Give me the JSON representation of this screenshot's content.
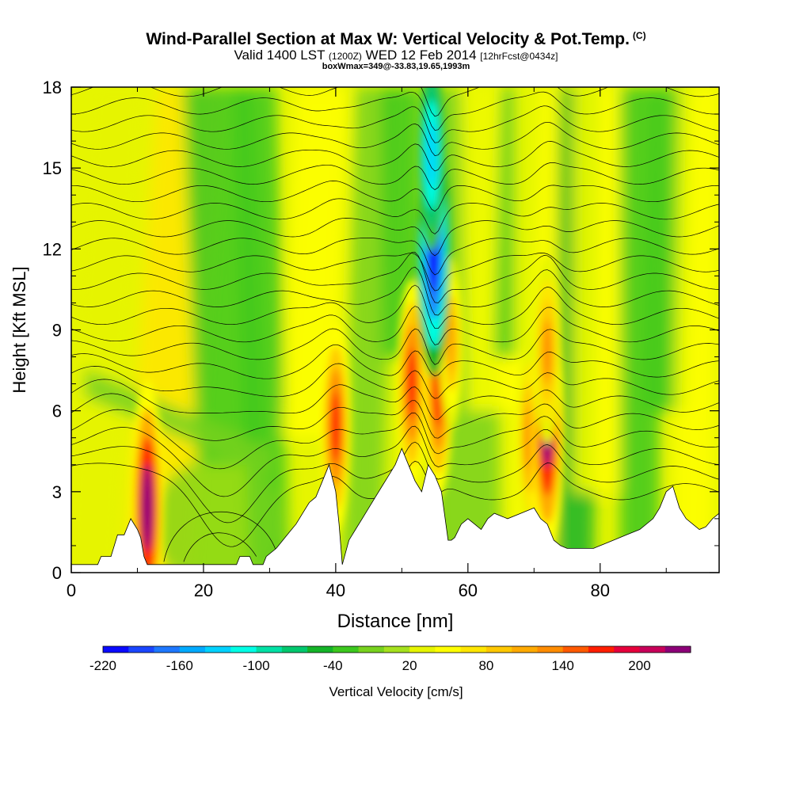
{
  "header": {
    "title": "Wind-Parallel Section at Max W: Vertical Velocity & Pot.Temp.",
    "copyright": "(C)",
    "subtitle_main": "Valid 1400 LST",
    "subtitle_utc": "(1200Z)",
    "subtitle_date": "WED 12 Feb 2014",
    "subtitle_fcst": "[12hrFcst@0434z]",
    "box_info": "boxWmax=349@-33.83,19.65,1993m"
  },
  "chart_data": {
    "type": "heatmap",
    "title": "Wind-Parallel Section at Max W: Vertical Velocity & Pot.Temp.",
    "xlabel": "Distance [nm]",
    "ylabel": "Height [Kft MSL]",
    "xlim": [
      0,
      98
    ],
    "ylim": [
      0,
      18
    ],
    "xticks": [
      0,
      20,
      40,
      60,
      80
    ],
    "yticks": [
      0,
      3,
      6,
      9,
      12,
      15,
      18
    ],
    "colorbar": {
      "label": "Vertical Velocity [cm/s]",
      "tick_labels": [
        "-220",
        "-160",
        "-100",
        "-40",
        "20",
        "80",
        "140",
        "200"
      ],
      "levels": [
        -220,
        -200,
        -180,
        -160,
        -140,
        -120,
        -100,
        -80,
        -60,
        -40,
        -20,
        0,
        20,
        40,
        60,
        80,
        100,
        120,
        140,
        160,
        180,
        200,
        220
      ],
      "colors": [
        "#0a0aff",
        "#1a46ff",
        "#1e78ff",
        "#00aaff",
        "#00d2ff",
        "#00ffe6",
        "#00e1a5",
        "#00c86e",
        "#14b428",
        "#3cc81e",
        "#78d21e",
        "#a5e11e",
        "#e6f500",
        "#ffff00",
        "#ffe600",
        "#ffc800",
        "#ffaa00",
        "#ff8c00",
        "#ff5a00",
        "#ff1e00",
        "#e6003c",
        "#c8005a",
        "#8c0078"
      ]
    },
    "terrain": [
      [
        0,
        0.3
      ],
      [
        4,
        0.3
      ],
      [
        4.5,
        0.6
      ],
      [
        6,
        0.6
      ],
      [
        6.5,
        1.0
      ],
      [
        7,
        1.4
      ],
      [
        8,
        1.4
      ],
      [
        9,
        2.0
      ],
      [
        10,
        1.6
      ],
      [
        10.5,
        1.3
      ],
      [
        11,
        0.6
      ],
      [
        11.5,
        0.3
      ],
      [
        25,
        0.3
      ],
      [
        25.5,
        0.6
      ],
      [
        27,
        0.6
      ],
      [
        27.5,
        0.3
      ],
      [
        29,
        0.3
      ],
      [
        29.5,
        0.6
      ],
      [
        31,
        0.9
      ],
      [
        32,
        1.2
      ],
      [
        33,
        1.5
      ],
      [
        34,
        1.8
      ],
      [
        35,
        2.2
      ],
      [
        36,
        2.6
      ],
      [
        37,
        2.8
      ],
      [
        38,
        3.4
      ],
      [
        39,
        4.0
      ],
      [
        40,
        3.0
      ],
      [
        40.5,
        1.8
      ],
      [
        41,
        0.3
      ],
      [
        42,
        1.2
      ],
      [
        43,
        1.6
      ],
      [
        44,
        2.0
      ],
      [
        45,
        2.4
      ],
      [
        46,
        2.8
      ],
      [
        47,
        3.2
      ],
      [
        48,
        3.6
      ],
      [
        49,
        4.0
      ],
      [
        50,
        4.6
      ],
      [
        51,
        4.0
      ],
      [
        52,
        3.4
      ],
      [
        53,
        3.0
      ],
      [
        54,
        4.0
      ],
      [
        55,
        3.6
      ],
      [
        56,
        3.0
      ],
      [
        57,
        1.2
      ],
      [
        57.5,
        1.2
      ],
      [
        58,
        1.3
      ],
      [
        59,
        1.8
      ],
      [
        60,
        2.0
      ],
      [
        61,
        1.8
      ],
      [
        62,
        1.6
      ],
      [
        63,
        2.0
      ],
      [
        64,
        2.2
      ],
      [
        66,
        2.0
      ],
      [
        68,
        2.2
      ],
      [
        70,
        2.4
      ],
      [
        71,
        2.0
      ],
      [
        72,
        1.8
      ],
      [
        73,
        1.2
      ],
      [
        74,
        1.0
      ],
      [
        75,
        0.9
      ],
      [
        77,
        0.9
      ],
      [
        79,
        0.9
      ],
      [
        80,
        1.0
      ],
      [
        82,
        1.2
      ],
      [
        84,
        1.4
      ],
      [
        86,
        1.6
      ],
      [
        88,
        2.0
      ],
      [
        89,
        2.4
      ],
      [
        90,
        3.0
      ],
      [
        91,
        3.2
      ],
      [
        92,
        2.4
      ],
      [
        93,
        2.0
      ],
      [
        94,
        1.8
      ],
      [
        95,
        1.6
      ],
      [
        96,
        1.7
      ],
      [
        97,
        2.0
      ],
      [
        98,
        2.2
      ]
    ],
    "updrafts": [
      {
        "x": 11.5,
        "y": 2.4,
        "w": 220
      },
      {
        "x": 40.0,
        "y": 5.4,
        "w": 160
      },
      {
        "x": 51.5,
        "y": 7.0,
        "w": 160
      },
      {
        "x": 55.5,
        "y": 6.8,
        "w": 170
      },
      {
        "x": 57.5,
        "y": 8.5,
        "w": 110
      },
      {
        "x": 69.5,
        "y": 5.0,
        "w": 140
      },
      {
        "x": 72.0,
        "y": 5.5,
        "w": 220
      },
      {
        "x": 72.0,
        "y": 8.2,
        "w": 130
      }
    ],
    "downdrafts": [
      {
        "x": 54.8,
        "y": 12.0,
        "w": -220
      },
      {
        "x": 54.5,
        "y": 15.5,
        "w": -140
      }
    ]
  }
}
